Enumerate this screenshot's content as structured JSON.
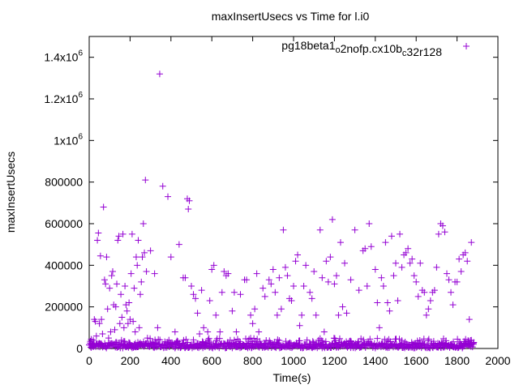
{
  "chart_data": {
    "type": "scatter",
    "title": "maxInsertUsecs vs Time for l.i0",
    "xlabel": "Time(s)",
    "ylabel": "maxInsertUsecs",
    "xlim": [
      0,
      2000
    ],
    "ylim": [
      0,
      1500000
    ],
    "grid": false,
    "legend_position": "top-right",
    "marker": "+",
    "color": "#9400d3",
    "x_ticks": [
      {
        "value": 0,
        "label": "0"
      },
      {
        "value": 200,
        "label": "200"
      },
      {
        "value": 400,
        "label": "400"
      },
      {
        "value": 600,
        "label": "600"
      },
      {
        "value": 800,
        "label": "800"
      },
      {
        "value": 1000,
        "label": "1000"
      },
      {
        "value": 1200,
        "label": "1200"
      },
      {
        "value": 1400,
        "label": "1400"
      },
      {
        "value": 1600,
        "label": "1600"
      },
      {
        "value": 1800,
        "label": "1800"
      },
      {
        "value": 2000,
        "label": "2000"
      }
    ],
    "y_ticks": [
      {
        "value": 0,
        "text": "0",
        "exp": ""
      },
      {
        "value": 200000,
        "text": "200000",
        "exp": ""
      },
      {
        "value": 400000,
        "text": "400000",
        "exp": ""
      },
      {
        "value": 600000,
        "text": "600000",
        "exp": ""
      },
      {
        "value": 800000,
        "text": "800000",
        "exp": ""
      },
      {
        "value": 1000000,
        "text": "1x10",
        "exp": "6"
      },
      {
        "value": 1200000,
        "text": "1.2x10",
        "exp": "6"
      },
      {
        "value": 1400000,
        "text": "1.4x10",
        "exp": "6"
      }
    ],
    "series": [
      {
        "name_parts": [
          {
            "text": "pg18beta1",
            "sub": false
          },
          {
            "text": "o",
            "sub": true
          },
          {
            "text": "2nofp.cx10b",
            "sub": false
          },
          {
            "text": "c",
            "sub": true
          },
          {
            "text": "32r128",
            "sub": false
          }
        ],
        "points": [
          [
            10,
            5000
          ],
          [
            15,
            15000
          ],
          [
            20,
            40000
          ],
          [
            25,
            140000
          ],
          [
            30,
            130000
          ],
          [
            35,
            60000
          ],
          [
            40,
            520000
          ],
          [
            45,
            555000
          ],
          [
            50,
            120000
          ],
          [
            55,
            445000
          ],
          [
            60,
            140000
          ],
          [
            65,
            70000
          ],
          [
            70,
            680000
          ],
          [
            75,
            330000
          ],
          [
            80,
            310000
          ],
          [
            85,
            440000
          ],
          [
            90,
            190000
          ],
          [
            95,
            50000
          ],
          [
            100,
            290000
          ],
          [
            105,
            80000
          ],
          [
            110,
            350000
          ],
          [
            115,
            370000
          ],
          [
            120,
            210000
          ],
          [
            125,
            90000
          ],
          [
            130,
            200000
          ],
          [
            135,
            310000
          ],
          [
            140,
            520000
          ],
          [
            145,
            540000
          ],
          [
            150,
            120000
          ],
          [
            155,
            260000
          ],
          [
            160,
            150000
          ],
          [
            165,
            550000
          ],
          [
            170,
            100000
          ],
          [
            175,
            300000
          ],
          [
            180,
            210000
          ],
          [
            185,
            180000
          ],
          [
            190,
            120000
          ],
          [
            195,
            220000
          ],
          [
            200,
            140000
          ],
          [
            205,
            360000
          ],
          [
            210,
            550000
          ],
          [
            215,
            130000
          ],
          [
            220,
            290000
          ],
          [
            225,
            80000
          ],
          [
            230,
            440000
          ],
          [
            235,
            400000
          ],
          [
            240,
            520000
          ],
          [
            245,
            100000
          ],
          [
            250,
            260000
          ],
          [
            255,
            320000
          ],
          [
            260,
            440000
          ],
          [
            265,
            600000
          ],
          [
            270,
            460000
          ],
          [
            275,
            810000
          ],
          [
            280,
            370000
          ],
          [
            285,
            50000
          ],
          [
            290,
            20000
          ],
          [
            300,
            470000
          ],
          [
            320,
            360000
          ],
          [
            335,
            100000
          ],
          [
            345,
            1320000
          ],
          [
            360,
            780000
          ],
          [
            375,
            20000
          ],
          [
            385,
            730000
          ],
          [
            400,
            440000
          ],
          [
            420,
            80000
          ],
          [
            440,
            500000
          ],
          [
            460,
            340000
          ],
          [
            470,
            340000
          ],
          [
            480,
            720000
          ],
          [
            485,
            670000
          ],
          [
            490,
            710000
          ],
          [
            500,
            300000
          ],
          [
            510,
            260000
          ],
          [
            520,
            240000
          ],
          [
            530,
            170000
          ],
          [
            540,
            70000
          ],
          [
            550,
            280000
          ],
          [
            560,
            100000
          ],
          [
            580,
            80000
          ],
          [
            590,
            230000
          ],
          [
            600,
            380000
          ],
          [
            610,
            400000
          ],
          [
            620,
            160000
          ],
          [
            640,
            80000
          ],
          [
            650,
            270000
          ],
          [
            660,
            370000
          ],
          [
            670,
            350000
          ],
          [
            680,
            360000
          ],
          [
            700,
            180000
          ],
          [
            710,
            270000
          ],
          [
            720,
            80000
          ],
          [
            740,
            260000
          ],
          [
            760,
            330000
          ],
          [
            770,
            330000
          ],
          [
            790,
            160000
          ],
          [
            800,
            120000
          ],
          [
            810,
            190000
          ],
          [
            820,
            360000
          ],
          [
            830,
            80000
          ],
          [
            850,
            290000
          ],
          [
            860,
            250000
          ],
          [
            880,
            330000
          ],
          [
            890,
            310000
          ],
          [
            900,
            380000
          ],
          [
            910,
            270000
          ],
          [
            920,
            160000
          ],
          [
            930,
            340000
          ],
          [
            940,
            190000
          ],
          [
            950,
            570000
          ],
          [
            960,
            390000
          ],
          [
            970,
            350000
          ],
          [
            980,
            240000
          ],
          [
            990,
            230000
          ],
          [
            1000,
            300000
          ],
          [
            1010,
            420000
          ],
          [
            1020,
            450000
          ],
          [
            1030,
            110000
          ],
          [
            1040,
            160000
          ],
          [
            1050,
            300000
          ],
          [
            1060,
            400000
          ],
          [
            1080,
            270000
          ],
          [
            1090,
            240000
          ],
          [
            1100,
            370000
          ],
          [
            1110,
            160000
          ],
          [
            1130,
            570000
          ],
          [
            1140,
            340000
          ],
          [
            1150,
            80000
          ],
          [
            1160,
            420000
          ],
          [
            1170,
            320000
          ],
          [
            1180,
            440000
          ],
          [
            1190,
            620000
          ],
          [
            1200,
            310000
          ],
          [
            1210,
            350000
          ],
          [
            1220,
            160000
          ],
          [
            1230,
            510000
          ],
          [
            1240,
            200000
          ],
          [
            1250,
            410000
          ],
          [
            1260,
            170000
          ],
          [
            1280,
            330000
          ],
          [
            1300,
            570000
          ],
          [
            1320,
            280000
          ],
          [
            1340,
            470000
          ],
          [
            1350,
            480000
          ],
          [
            1360,
            300000
          ],
          [
            1370,
            600000
          ],
          [
            1380,
            490000
          ],
          [
            1400,
            380000
          ],
          [
            1410,
            220000
          ],
          [
            1420,
            100000
          ],
          [
            1430,
            340000
          ],
          [
            1440,
            300000
          ],
          [
            1450,
            510000
          ],
          [
            1460,
            220000
          ],
          [
            1470,
            180000
          ],
          [
            1480,
            540000
          ],
          [
            1490,
            350000
          ],
          [
            1500,
            410000
          ],
          [
            1510,
            230000
          ],
          [
            1520,
            550000
          ],
          [
            1530,
            390000
          ],
          [
            1540,
            450000
          ],
          [
            1550,
            460000
          ],
          [
            1560,
            480000
          ],
          [
            1570,
            410000
          ],
          [
            1580,
            430000
          ],
          [
            1590,
            350000
          ],
          [
            1600,
            320000
          ],
          [
            1610,
            250000
          ],
          [
            1620,
            410000
          ],
          [
            1630,
            280000
          ],
          [
            1640,
            270000
          ],
          [
            1650,
            160000
          ],
          [
            1660,
            190000
          ],
          [
            1670,
            230000
          ],
          [
            1680,
            270000
          ],
          [
            1690,
            280000
          ],
          [
            1700,
            390000
          ],
          [
            1710,
            550000
          ],
          [
            1720,
            600000
          ],
          [
            1730,
            590000
          ],
          [
            1740,
            560000
          ],
          [
            1750,
            360000
          ],
          [
            1760,
            330000
          ],
          [
            1770,
            270000
          ],
          [
            1780,
            210000
          ],
          [
            1790,
            320000
          ],
          [
            1800,
            320000
          ],
          [
            1810,
            430000
          ],
          [
            1820,
            370000
          ],
          [
            1830,
            450000
          ],
          [
            1840,
            460000
          ],
          [
            1850,
            420000
          ],
          [
            1860,
            140000
          ],
          [
            1870,
            510000
          ],
          [
            1880,
            20000
          ]
        ],
        "baseline_band": {
          "x_from": 0,
          "x_to": 1880,
          "step": 4,
          "y_min": 2000,
          "y_max": 50000
        }
      }
    ]
  }
}
